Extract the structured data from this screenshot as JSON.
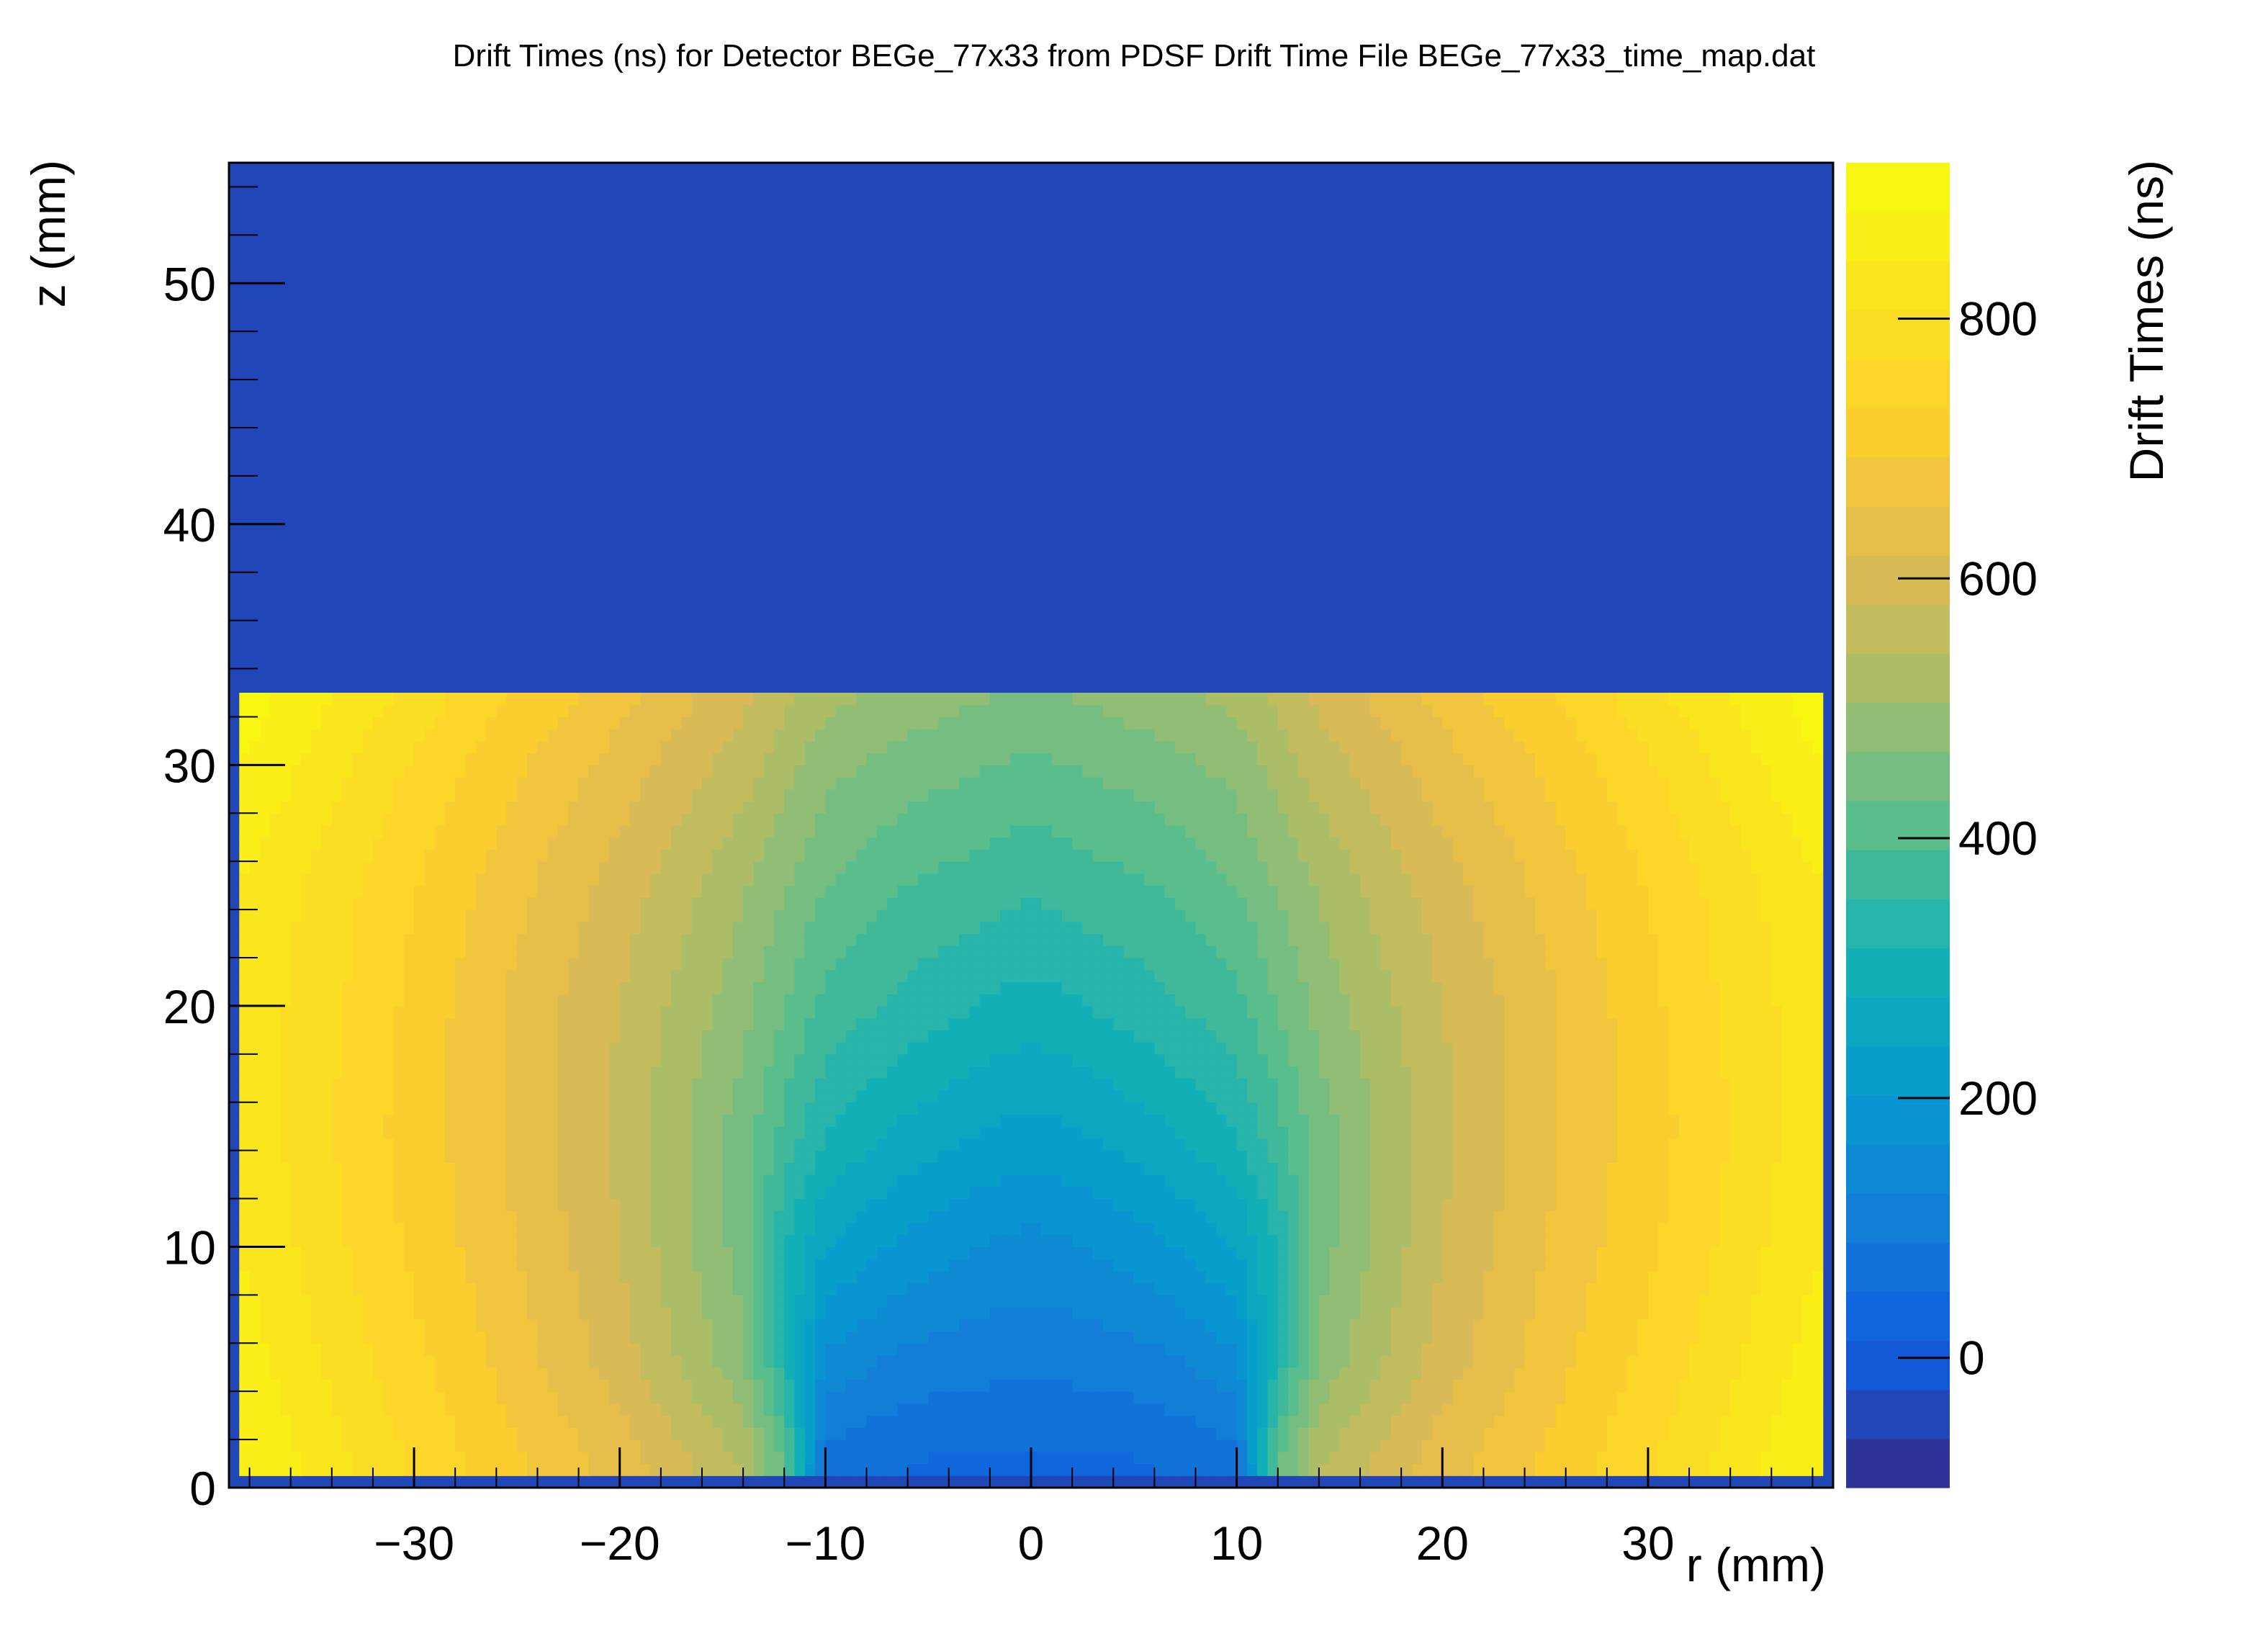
{
  "chart_data": {
    "type": "heatmap",
    "title": "Drift Times (ns) for Detector BEGe_77x33 from PDSF Drift Time File BEGe_77x33_time_map.dat",
    "xlabel": "r (mm)",
    "ylabel": "z (mm)",
    "zlabel": "Drift Times (ns)",
    "xlim": [
      -39,
      39
    ],
    "ylim": [
      0,
      55
    ],
    "zlim": [
      -100,
      920
    ],
    "x_ticks": [
      -30,
      -20,
      -10,
      0,
      10,
      20,
      30
    ],
    "x_tick_labels": [
      "−30",
      "−20",
      "−10",
      "0",
      "10",
      "20",
      "30"
    ],
    "y_ticks": [
      0,
      10,
      20,
      30,
      40,
      50
    ],
    "y_tick_labels": [
      "0",
      "10",
      "20",
      "30",
      "40",
      "50"
    ],
    "z_ticks": [
      0,
      200,
      400,
      600,
      800
    ],
    "z_tick_labels": [
      "0",
      "200",
      "400",
      "600",
      "800"
    ],
    "background_value": -60,
    "detector_region": {
      "r": [
        -38.5,
        38.5
      ],
      "z": [
        0.5,
        33
      ]
    },
    "sample_grid_r": [
      -38,
      -32,
      -26,
      -20,
      -14,
      -12,
      -10,
      -6,
      -2,
      0,
      2,
      6,
      10,
      12,
      14,
      20,
      26,
      32,
      38
    ],
    "sample_grid_z": [
      1,
      5,
      10,
      15,
      20,
      25,
      30,
      33
    ],
    "drift_time_samples": [
      [
        880,
        790,
        710,
        640,
        540,
        420,
        70,
        50,
        40,
        40,
        40,
        50,
        70,
        420,
        540,
        640,
        710,
        790,
        880
      ],
      [
        860,
        770,
        690,
        600,
        480,
        330,
        150,
        110,
        100,
        100,
        100,
        110,
        150,
        330,
        480,
        600,
        690,
        770,
        860
      ],
      [
        840,
        750,
        670,
        580,
        450,
        320,
        240,
        190,
        160,
        150,
        160,
        190,
        240,
        320,
        450,
        580,
        670,
        750,
        840
      ],
      [
        830,
        740,
        660,
        570,
        450,
        380,
        320,
        270,
        240,
        230,
        240,
        270,
        320,
        380,
        450,
        570,
        660,
        740,
        830
      ],
      [
        830,
        750,
        660,
        580,
        480,
        430,
        380,
        340,
        310,
        300,
        310,
        340,
        380,
        430,
        480,
        580,
        660,
        750,
        830
      ],
      [
        840,
        760,
        680,
        600,
        510,
        470,
        430,
        390,
        370,
        360,
        370,
        390,
        430,
        470,
        510,
        600,
        680,
        760,
        840
      ],
      [
        880,
        790,
        710,
        640,
        560,
        520,
        480,
        450,
        430,
        420,
        430,
        450,
        480,
        520,
        560,
        640,
        710,
        790,
        880
      ],
      [
        900,
        820,
        740,
        670,
        590,
        550,
        520,
        490,
        470,
        460,
        470,
        490,
        520,
        550,
        590,
        670,
        740,
        820,
        900
      ]
    ]
  }
}
